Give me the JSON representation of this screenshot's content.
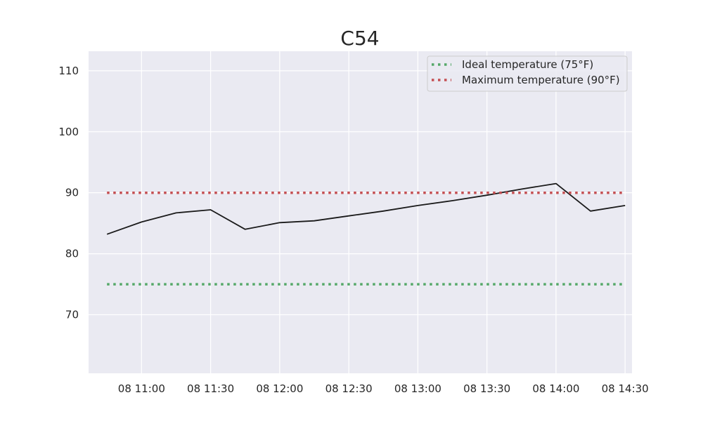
{
  "chart_data": {
    "type": "line",
    "title": "C54",
    "xlabel": "",
    "ylabel": "",
    "x": [
      "08 10:45",
      "08 11:00",
      "08 11:15",
      "08 11:30",
      "08 11:45",
      "08 12:00",
      "08 12:15",
      "08 12:30",
      "08 12:45",
      "08 13:00",
      "08 13:15",
      "08 13:30",
      "08 13:45",
      "08 14:00",
      "08 14:15",
      "08 14:30"
    ],
    "series": [
      {
        "values": [
          83.2,
          85.2,
          86.7,
          87.2,
          84.0,
          85.1,
          85.4,
          86.2,
          87.0,
          87.9,
          88.7,
          89.6,
          90.6,
          91.5,
          87.0,
          87.9
        ],
        "color": "#1a1a1a",
        "style": "solid"
      },
      {
        "name": "Ideal temperature (75°F)",
        "values": [
          75,
          75,
          75,
          75,
          75,
          75,
          75,
          75,
          75,
          75,
          75,
          75,
          75,
          75,
          75,
          75
        ],
        "color": "#55a868",
        "style": "dotted"
      },
      {
        "name": "Maximum temperature (90°F)",
        "values": [
          90,
          90,
          90,
          90,
          90,
          90,
          90,
          90,
          90,
          90,
          90,
          90,
          90,
          90,
          90,
          90
        ],
        "color": "#c44e52",
        "style": "dotted"
      }
    ],
    "xticks": [
      "08 11:00",
      "08 11:30",
      "08 12:00",
      "08 12:30",
      "08 13:00",
      "08 13:30",
      "08 14:00",
      "08 14:30"
    ],
    "yticks": [
      70,
      80,
      90,
      100,
      110
    ],
    "xlim": [
      "08 10:37",
      "08 14:33"
    ],
    "ylim": [
      60.4,
      113.2
    ],
    "grid": true,
    "legend_position": "top-right",
    "background": "#eaeaf2",
    "grid_color": "#ffffff"
  }
}
